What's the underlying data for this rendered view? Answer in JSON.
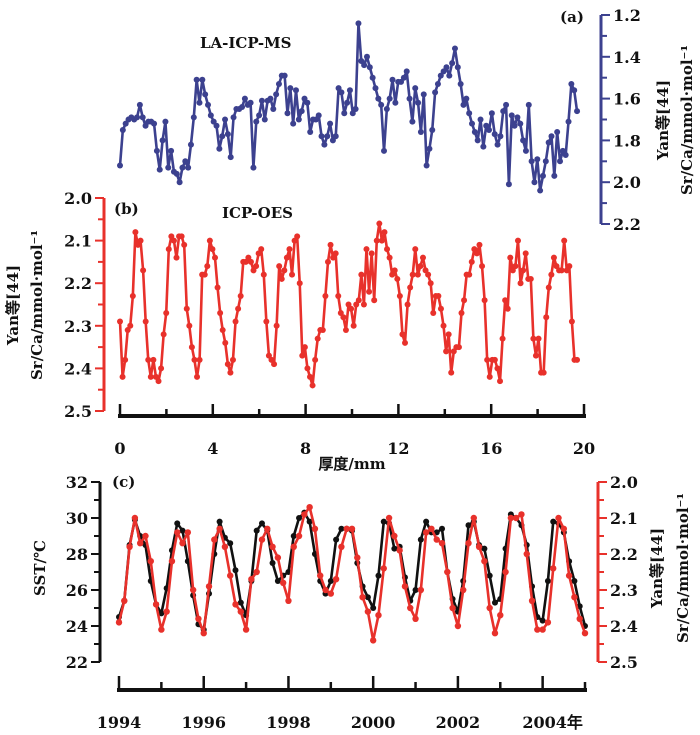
{
  "colors": {
    "a": "#3c418f",
    "b": "#e8312b",
    "sst": "#111111",
    "srca": "#e8312b"
  },
  "chart_data": [
    {
      "type": "line",
      "panel": "(a)",
      "title": "LA-ICP-MS",
      "xlabel": "厚度/mm",
      "ylabel": [
        "Yan等[44]",
        "Sr/Ca/mmol·mol⁻¹"
      ],
      "xlim": [
        0,
        20
      ],
      "ylim": [
        1.2,
        2.2
      ],
      "y_inverted": true,
      "y_axis_side": "right",
      "yticks": [
        "1.2",
        "1.4",
        "1.6",
        "1.8",
        "2.0",
        "2.2"
      ],
      "x_start": 0,
      "x_end": 19.7,
      "values": [
        1.92,
        1.75,
        1.72,
        1.7,
        1.69,
        1.7,
        1.69,
        1.63,
        1.69,
        1.73,
        1.71,
        1.71,
        1.72,
        1.85,
        1.94,
        1.8,
        1.71,
        1.93,
        1.85,
        1.95,
        1.96,
        2.0,
        1.93,
        1.9,
        1.93,
        1.82,
        1.69,
        1.51,
        1.62,
        1.51,
        1.58,
        1.63,
        1.68,
        1.71,
        1.73,
        1.84,
        1.78,
        1.7,
        1.77,
        1.88,
        1.69,
        1.65,
        1.65,
        1.64,
        1.6,
        1.63,
        1.62,
        1.93,
        1.71,
        1.68,
        1.61,
        1.7,
        1.61,
        1.6,
        1.65,
        1.58,
        1.53,
        1.49,
        1.49,
        1.67,
        1.55,
        1.72,
        1.56,
        1.7,
        1.66,
        1.6,
        1.62,
        1.76,
        1.7,
        1.7,
        1.68,
        1.78,
        1.82,
        1.78,
        1.72,
        1.8,
        1.78,
        1.55,
        1.57,
        1.67,
        1.62,
        1.56,
        1.67,
        1.65,
        1.24,
        1.42,
        1.44,
        1.4,
        1.45,
        1.5,
        1.55,
        1.6,
        1.63,
        1.85,
        1.65,
        1.6,
        1.51,
        1.62,
        1.52,
        1.52,
        1.5,
        1.47,
        1.6,
        1.71,
        1.55,
        1.62,
        1.76,
        1.58,
        1.92,
        1.84,
        1.75,
        1.57,
        1.53,
        1.49,
        1.47,
        1.45,
        1.49,
        1.43,
        1.36,
        1.45,
        1.53,
        1.63,
        1.6,
        1.67,
        1.72,
        1.76,
        1.8,
        1.7,
        1.83,
        1.73,
        1.75,
        1.67,
        1.77,
        1.82,
        1.78,
        1.66,
        1.63,
        2.01,
        1.68,
        1.73,
        1.69,
        1.72,
        1.8,
        1.85,
        1.63,
        1.9,
        2.0,
        1.89,
        2.04,
        1.97,
        1.9,
        1.81,
        1.78,
        1.97,
        1.76,
        1.9,
        1.85,
        1.87,
        1.71,
        1.53,
        1.56,
        1.66
      ]
    },
    {
      "type": "line",
      "panel": "(b)",
      "title": "ICP-OES",
      "xlabel": "厚度/mm",
      "ylabel": [
        "Yan等[44]",
        "Sr/Ca/mmol·mol⁻¹"
      ],
      "xlim": [
        0,
        20
      ],
      "xticks": [
        "0",
        "4",
        "8",
        "12",
        "16",
        "20"
      ],
      "ylim": [
        2.0,
        2.5
      ],
      "y_inverted": true,
      "y_axis_side": "left",
      "yticks": [
        "2.0",
        "2.1",
        "2.2",
        "2.3",
        "2.4",
        "2.5"
      ],
      "x_start": 0,
      "x_end": 19.7,
      "values": [
        2.29,
        2.42,
        2.38,
        2.31,
        2.3,
        2.23,
        2.08,
        2.11,
        2.1,
        2.17,
        2.29,
        2.38,
        2.42,
        2.38,
        2.42,
        2.43,
        2.4,
        2.32,
        2.27,
        2.12,
        2.09,
        2.1,
        2.14,
        2.09,
        2.09,
        2.11,
        2.26,
        2.3,
        2.35,
        2.38,
        2.42,
        2.38,
        2.18,
        2.18,
        2.16,
        2.1,
        2.12,
        2.14,
        2.21,
        2.27,
        2.31,
        2.34,
        2.39,
        2.41,
        2.38,
        2.29,
        2.26,
        2.23,
        2.15,
        2.15,
        2.14,
        2.15,
        2.17,
        2.16,
        2.13,
        2.12,
        2.18,
        2.29,
        2.37,
        2.38,
        2.39,
        2.3,
        2.16,
        2.19,
        2.17,
        2.14,
        2.12,
        2.18,
        2.1,
        2.09,
        2.2,
        2.37,
        2.35,
        2.4,
        2.42,
        2.44,
        2.38,
        2.33,
        2.31,
        2.31,
        2.23,
        2.15,
        2.11,
        2.14,
        2.13,
        2.23,
        2.27,
        2.28,
        2.31,
        2.25,
        2.26,
        2.3,
        2.25,
        2.24,
        2.18,
        2.25,
        2.12,
        2.22,
        2.13,
        2.24,
        2.1,
        2.06,
        2.1,
        2.08,
        2.12,
        2.14,
        2.18,
        2.17,
        2.19,
        2.23,
        2.32,
        2.34,
        2.25,
        2.21,
        2.18,
        2.12,
        2.18,
        2.16,
        2.14,
        2.17,
        2.18,
        2.2,
        2.27,
        2.23,
        2.23,
        2.26,
        2.3,
        2.36,
        2.32,
        2.41,
        2.36,
        2.35,
        2.35,
        2.27,
        2.24,
        2.18,
        2.18,
        2.15,
        2.12,
        2.13,
        2.11,
        2.16,
        2.24,
        2.38,
        2.42,
        2.38,
        2.38,
        2.4,
        2.43,
        2.33,
        2.24,
        2.26,
        2.14,
        2.17,
        2.16,
        2.1,
        2.2,
        2.17,
        2.13,
        2.19,
        2.19,
        2.33,
        2.37,
        2.33,
        2.41,
        2.41,
        2.28,
        2.21,
        2.18,
        2.14,
        2.16,
        2.17,
        2.17,
        2.1,
        2.17,
        2.16,
        2.29,
        2.38,
        2.38
      ]
    },
    {
      "type": "line",
      "panel": "(c)",
      "xlim": [
        1994,
        2005
      ],
      "xticks": [
        "1994",
        "1996",
        "1998",
        "2000",
        "2002",
        "2004年"
      ],
      "x_start": 1994,
      "x_end": 2005,
      "left_axis": {
        "label": "SST/℃",
        "ylim": [
          22,
          32
        ],
        "yticks": [
          "22",
          "24",
          "26",
          "28",
          "30",
          "32"
        ]
      },
      "right_axis": {
        "label": [
          "Yan等[44]",
          "Sr/Ca/mmol·mol⁻¹"
        ],
        "ylim": [
          2.0,
          2.5
        ],
        "inverted": true,
        "yticks": [
          "2.0",
          "2.1",
          "2.2",
          "2.3",
          "2.4",
          "2.5"
        ]
      },
      "series": [
        {
          "name": "SST",
          "axis": "left",
          "values": [
            24.5,
            25.4,
            28.5,
            29.9,
            29.0,
            28.5,
            26.5,
            25.2,
            24.7,
            26.1,
            28.2,
            29.7,
            29.3,
            27.6,
            25.7,
            24.1,
            23.8,
            25.8,
            28.0,
            29.8,
            28.9,
            28.6,
            27.1,
            25.3,
            24.6,
            26.5,
            29.3,
            29.7,
            29.3,
            27.5,
            26.5,
            26.8,
            27.0,
            29.0,
            30.0,
            30.3,
            29.8,
            28.0,
            26.5,
            25.8,
            26.5,
            28.8,
            29.4,
            29.4,
            29.3,
            27.5,
            26.2,
            25.6,
            25.0,
            26.8,
            29.8,
            29.7,
            28.3,
            28.4,
            26.7,
            25.4,
            26.0,
            28.8,
            29.8,
            29.2,
            29.2,
            29.4,
            27.0,
            25.5,
            24.8,
            26.5,
            29.6,
            29.8,
            28.5,
            28.3,
            26.8,
            25.3,
            25.5,
            28.3,
            30.2,
            30.0,
            29.6,
            28.5,
            26.2,
            24.5,
            24.3,
            26.5,
            29.8,
            29.7,
            29.2,
            27.6,
            26.5,
            25.1,
            24.0
          ]
        },
        {
          "name": "Sr/Ca",
          "axis": "right",
          "values": [
            2.39,
            2.33,
            2.18,
            2.1,
            2.17,
            2.15,
            2.22,
            2.34,
            2.41,
            2.36,
            2.22,
            2.14,
            2.17,
            2.14,
            2.3,
            2.38,
            2.42,
            2.29,
            2.16,
            2.13,
            2.18,
            2.26,
            2.34,
            2.36,
            2.41,
            2.27,
            2.25,
            2.16,
            2.13,
            2.18,
            2.21,
            2.28,
            2.33,
            2.18,
            2.15,
            2.09,
            2.07,
            2.13,
            2.26,
            2.3,
            2.31,
            2.27,
            2.18,
            2.13,
            2.13,
            2.21,
            2.32,
            2.36,
            2.44,
            2.37,
            2.24,
            2.1,
            2.15,
            2.19,
            2.29,
            2.35,
            2.38,
            2.3,
            2.14,
            2.13,
            2.16,
            2.17,
            2.25,
            2.35,
            2.4,
            2.3,
            2.17,
            2.1,
            2.18,
            2.22,
            2.35,
            2.42,
            2.37,
            2.25,
            2.1,
            2.1,
            2.09,
            2.2,
            2.33,
            2.41,
            2.41,
            2.39,
            2.24,
            2.1,
            2.13,
            2.26,
            2.32,
            2.38,
            2.42
          ]
        }
      ]
    }
  ]
}
